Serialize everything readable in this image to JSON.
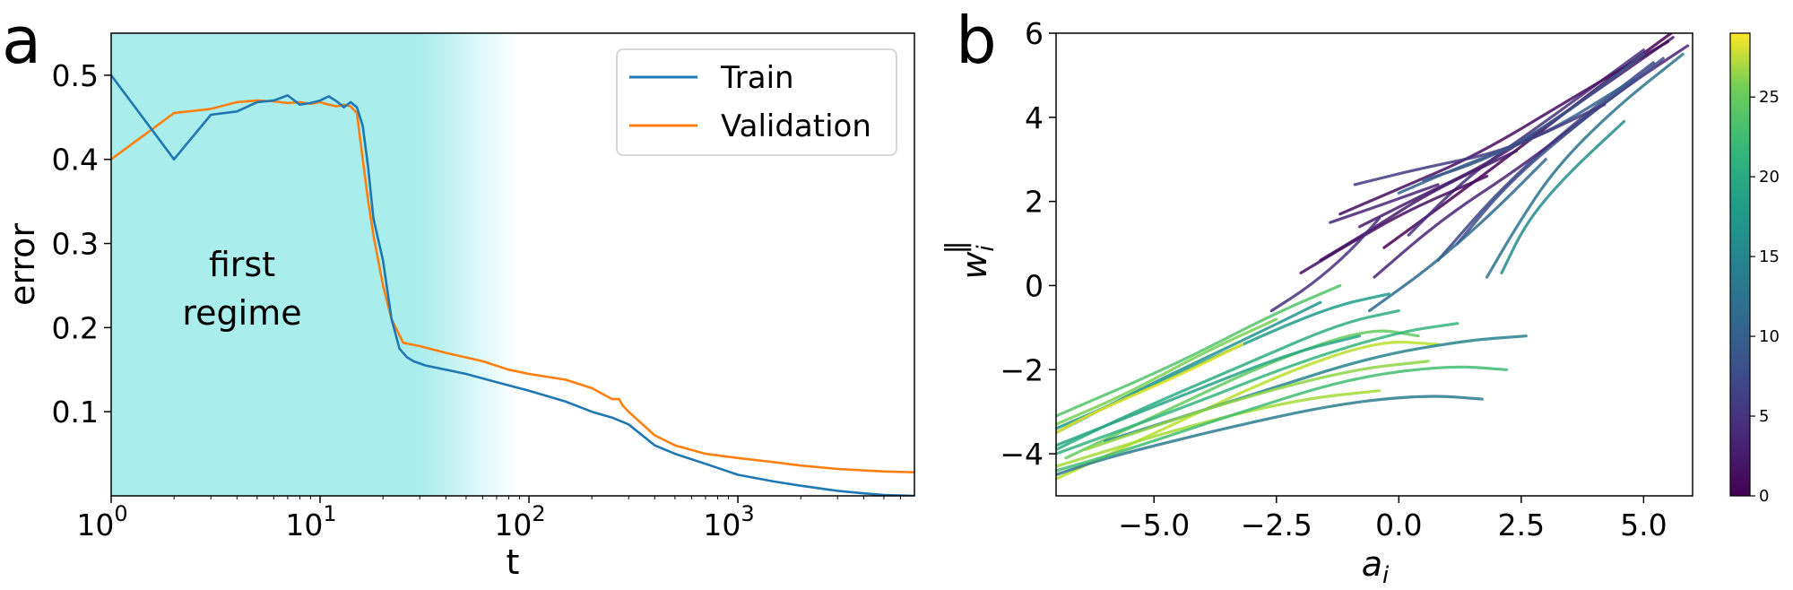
{
  "chart_data": [
    {
      "panel": "a",
      "type": "line",
      "xscale": "log",
      "xlim": [
        1,
        7000
      ],
      "ylim": [
        0.0,
        0.55
      ],
      "xlabel": "t",
      "ylabel": "error",
      "xticks": [
        {
          "value": 1,
          "base": "10",
          "exp": "0"
        },
        {
          "value": 10,
          "base": "10",
          "exp": "1"
        },
        {
          "value": 100,
          "base": "10",
          "exp": "2"
        },
        {
          "value": 1000,
          "base": "10",
          "exp": "3"
        }
      ],
      "yticks": [
        {
          "value": 0.1,
          "label": "0.1"
        },
        {
          "value": 0.2,
          "label": "0.2"
        },
        {
          "value": 0.3,
          "label": "0.3"
        },
        {
          "value": 0.4,
          "label": "0.4"
        },
        {
          "value": 0.5,
          "label": "0.5"
        }
      ],
      "annotation": {
        "line1": "first",
        "line2": "regime"
      },
      "shaded_region": {
        "from": 1,
        "fade_start": 30,
        "fade_end": 90,
        "color": "#a9eded"
      },
      "legend_position": "top-right",
      "series": [
        {
          "name": "Train",
          "color": "#1f77b4",
          "points": [
            [
              1,
              0.5
            ],
            [
              2,
              0.4
            ],
            [
              3,
              0.453
            ],
            [
              4,
              0.457
            ],
            [
              5,
              0.468
            ],
            [
              6,
              0.47
            ],
            [
              7,
              0.476
            ],
            [
              8,
              0.465
            ],
            [
              9,
              0.467
            ],
            [
              10,
              0.47
            ],
            [
              11,
              0.475
            ],
            [
              12,
              0.469
            ],
            [
              13,
              0.462
            ],
            [
              14,
              0.468
            ],
            [
              15,
              0.462
            ],
            [
              16,
              0.44
            ],
            [
              17,
              0.39
            ],
            [
              18,
              0.33
            ],
            [
              20,
              0.28
            ],
            [
              22,
              0.21
            ],
            [
              24,
              0.175
            ],
            [
              26,
              0.165
            ],
            [
              28,
              0.16
            ],
            [
              32,
              0.155
            ],
            [
              40,
              0.15
            ],
            [
              50,
              0.145
            ],
            [
              70,
              0.135
            ],
            [
              100,
              0.125
            ],
            [
              150,
              0.112
            ],
            [
              200,
              0.1
            ],
            [
              250,
              0.093
            ],
            [
              300,
              0.085
            ],
            [
              400,
              0.06
            ],
            [
              500,
              0.05
            ],
            [
              700,
              0.038
            ],
            [
              1000,
              0.025
            ],
            [
              1500,
              0.017
            ],
            [
              2000,
              0.012
            ],
            [
              3000,
              0.006
            ],
            [
              4000,
              0.003
            ],
            [
              5000,
              0.001
            ],
            [
              7000,
              0.0
            ]
          ]
        },
        {
          "name": "Validation",
          "color": "#ff7f0e",
          "points": [
            [
              1,
              0.4
            ],
            [
              2,
              0.455
            ],
            [
              3,
              0.46
            ],
            [
              4,
              0.468
            ],
            [
              5,
              0.47
            ],
            [
              6,
              0.469
            ],
            [
              7,
              0.467
            ],
            [
              8,
              0.468
            ],
            [
              9,
              0.466
            ],
            [
              10,
              0.468
            ],
            [
              11,
              0.465
            ],
            [
              12,
              0.463
            ],
            [
              13,
              0.465
            ],
            [
              14,
              0.463
            ],
            [
              15,
              0.455
            ],
            [
              16,
              0.4
            ],
            [
              17,
              0.35
            ],
            [
              18,
              0.31
            ],
            [
              20,
              0.25
            ],
            [
              22,
              0.21
            ],
            [
              25,
              0.182
            ],
            [
              30,
              0.178
            ],
            [
              40,
              0.17
            ],
            [
              60,
              0.16
            ],
            [
              80,
              0.15
            ],
            [
              100,
              0.145
            ],
            [
              150,
              0.138
            ],
            [
              200,
              0.128
            ],
            [
              250,
              0.115
            ],
            [
              270,
              0.115
            ],
            [
              280,
              0.108
            ],
            [
              300,
              0.1
            ],
            [
              400,
              0.072
            ],
            [
              500,
              0.06
            ],
            [
              700,
              0.05
            ],
            [
              1000,
              0.045
            ],
            [
              1500,
              0.04
            ],
            [
              2000,
              0.036
            ],
            [
              3000,
              0.032
            ],
            [
              5000,
              0.029
            ],
            [
              7000,
              0.028
            ]
          ]
        }
      ]
    },
    {
      "panel": "b",
      "type": "line",
      "xlim": [
        -7.0,
        6.0
      ],
      "ylim": [
        -5.0,
        6.0
      ],
      "xlabel": "a",
      "xlabel_sub": "i",
      "ylabel": "w",
      "ylabel_sub": "i",
      "ylabel_sup": "‖",
      "xticks": [
        {
          "value": -5.0,
          "label": "−5.0"
        },
        {
          "value": -2.5,
          "label": "−2.5"
        },
        {
          "value": 0.0,
          "label": "0.0"
        },
        {
          "value": 2.5,
          "label": "2.5"
        },
        {
          "value": 5.0,
          "label": "5.0"
        }
      ],
      "yticks": [
        {
          "value": -4,
          "label": "−4"
        },
        {
          "value": -2,
          "label": "−2"
        },
        {
          "value": 0,
          "label": "0"
        },
        {
          "value": 2,
          "label": "2"
        },
        {
          "value": 4,
          "label": "4"
        },
        {
          "value": 6,
          "label": "6"
        }
      ],
      "colormap": "viridis",
      "colorbar": {
        "range": [
          0,
          29
        ],
        "ticks": [
          {
            "value": 0,
            "label": "0"
          },
          {
            "value": 5,
            "label": "5"
          },
          {
            "value": 10,
            "label": "10"
          },
          {
            "value": 15,
            "label": "15"
          },
          {
            "value": 20,
            "label": "20"
          },
          {
            "value": 25,
            "label": "25"
          }
        ]
      },
      "trajectories": [
        [
          [
            -0.3,
            0.9
          ],
          [
            1.0,
            2.0
          ],
          [
            2.5,
            3.3
          ],
          [
            4.5,
            5.1
          ],
          [
            5.8,
            6.2
          ]
        ],
        [
          [
            -0.8,
            1.4
          ],
          [
            0.4,
            2.1
          ],
          [
            2.0,
            3.0
          ],
          [
            4.0,
            4.6
          ],
          [
            5.6,
            5.9
          ]
        ],
        [
          [
            0.2,
            1.2
          ],
          [
            1.4,
            2.6
          ],
          [
            3.0,
            3.9
          ],
          [
            5.0,
            5.6
          ]
        ],
        [
          [
            -1.2,
            1.7
          ],
          [
            0.0,
            2.3
          ],
          [
            1.6,
            3.1
          ],
          [
            3.6,
            4.5
          ],
          [
            5.5,
            5.8
          ]
        ],
        [
          [
            0.8,
            0.6
          ],
          [
            2.0,
            2.2
          ],
          [
            3.4,
            3.7
          ],
          [
            5.2,
            5.3
          ]
        ],
        [
          [
            -0.5,
            0.2
          ],
          [
            0.9,
            1.6
          ],
          [
            2.6,
            2.9
          ],
          [
            4.6,
            4.7
          ],
          [
            5.9,
            5.7
          ]
        ],
        [
          [
            0.0,
            2.2
          ],
          [
            1.4,
            2.9
          ],
          [
            3.0,
            3.6
          ],
          [
            4.8,
            4.9
          ]
        ],
        [
          [
            1.2,
            1.0
          ],
          [
            2.2,
            2.4
          ],
          [
            3.6,
            3.8
          ],
          [
            5.4,
            5.4
          ]
        ],
        [
          [
            1.8,
            0.2
          ],
          [
            2.4,
            1.4
          ],
          [
            3.2,
            2.8
          ],
          [
            4.4,
            4.2
          ],
          [
            5.8,
            5.5
          ]
        ],
        [
          [
            2.1,
            0.3
          ],
          [
            2.6,
            1.5
          ],
          [
            3.4,
            2.6
          ],
          [
            4.6,
            3.9
          ]
        ],
        [
          [
            -0.9,
            2.4
          ],
          [
            0.5,
            2.8
          ],
          [
            2.2,
            3.2
          ],
          [
            4.2,
            4.3
          ]
        ],
        [
          [
            0.5,
            2.5
          ],
          [
            1.8,
            3.0
          ],
          [
            3.2,
            3.9
          ],
          [
            5.0,
            5.5
          ]
        ],
        [
          [
            -1.6,
            0.6
          ],
          [
            -0.6,
            1.3
          ],
          [
            0.6,
            2.2
          ],
          [
            2.4,
            3.2
          ]
        ],
        [
          [
            -2.0,
            0.3
          ],
          [
            -1.0,
            1.0
          ],
          [
            0.2,
            1.8
          ],
          [
            1.8,
            2.6
          ]
        ],
        [
          [
            -1.4,
            1.5
          ],
          [
            -0.4,
            1.9
          ],
          [
            0.8,
            2.4
          ]
        ],
        [
          [
            -0.6,
            -0.6
          ],
          [
            0.6,
            0.4
          ],
          [
            1.8,
            1.6
          ],
          [
            3.0,
            3.0
          ]
        ],
        [
          [
            -2.6,
            -0.6
          ],
          [
            -1.8,
            0.0
          ],
          [
            -1.0,
            0.8
          ],
          [
            -0.4,
            1.6
          ]
        ],
        [
          [
            0.4,
            -1.2
          ],
          [
            -0.6,
            -1.0
          ],
          [
            -2.6,
            -1.8
          ],
          [
            -4.8,
            -3.0
          ],
          [
            -6.8,
            -4.1
          ]
        ],
        [
          [
            0.8,
            -1.4
          ],
          [
            -0.4,
            -1.3
          ],
          [
            -2.4,
            -2.1
          ],
          [
            -4.6,
            -3.3
          ],
          [
            -7.0,
            -4.6
          ]
        ],
        [
          [
            0.0,
            -0.6
          ],
          [
            -1.2,
            -0.9
          ],
          [
            -3.2,
            -1.9
          ],
          [
            -5.4,
            -3.0
          ],
          [
            -7.0,
            -3.9
          ]
        ],
        [
          [
            1.7,
            -2.7
          ],
          [
            0.6,
            -2.6
          ],
          [
            -1.2,
            -2.8
          ],
          [
            -3.6,
            -3.4
          ],
          [
            -6.0,
            -4.1
          ],
          [
            -7.0,
            -4.5
          ]
        ],
        [
          [
            -0.4,
            -2.5
          ],
          [
            -2.0,
            -2.7
          ],
          [
            -4.2,
            -3.3
          ],
          [
            -7.0,
            -4.3
          ]
        ],
        [
          [
            2.2,
            -2.0
          ],
          [
            1.0,
            -1.9
          ],
          [
            -1.0,
            -2.2
          ],
          [
            -3.2,
            -3.0
          ],
          [
            -5.8,
            -4.0
          ],
          [
            -7.0,
            -4.4
          ]
        ],
        [
          [
            -0.8,
            -1.2
          ],
          [
            -2.2,
            -1.6
          ],
          [
            -4.4,
            -2.6
          ],
          [
            -7.0,
            -3.8
          ]
        ],
        [
          [
            -1.6,
            -0.4
          ],
          [
            -3.0,
            -1.2
          ],
          [
            -5.0,
            -2.3
          ],
          [
            -7.0,
            -3.5
          ]
        ],
        [
          [
            -2.5,
            -0.8
          ],
          [
            -4.0,
            -1.6
          ],
          [
            -5.6,
            -2.6
          ],
          [
            -7.0,
            -3.3
          ]
        ],
        [
          [
            1.2,
            -0.9
          ],
          [
            0.0,
            -1.1
          ],
          [
            -2.0,
            -1.8
          ],
          [
            -4.4,
            -2.9
          ],
          [
            -7.0,
            -4.0
          ]
        ],
        [
          [
            -0.2,
            -0.2
          ],
          [
            -1.4,
            -0.5
          ],
          [
            -3.4,
            -1.5
          ],
          [
            -5.8,
            -2.8
          ],
          [
            -7.0,
            -3.4
          ]
        ],
        [
          [
            -1.2,
            0.0
          ],
          [
            -2.6,
            -0.7
          ],
          [
            -4.6,
            -1.9
          ],
          [
            -7.0,
            -3.1
          ]
        ],
        [
          [
            2.6,
            -1.2
          ],
          [
            1.4,
            -1.3
          ],
          [
            -0.6,
            -1.7
          ],
          [
            -3.0,
            -2.6
          ],
          [
            -6.0,
            -3.7
          ]
        ],
        [
          [
            -3.2,
            -1.4
          ],
          [
            -4.6,
            -2.2
          ],
          [
            -6.2,
            -3.0
          ],
          [
            -7.0,
            -3.5
          ]
        ],
        [
          [
            0.6,
            -1.8
          ],
          [
            -1.0,
            -2.0
          ],
          [
            -3.6,
            -2.8
          ],
          [
            -6.4,
            -3.9
          ]
        ]
      ],
      "trajectory_colors": [
        0,
        2,
        4,
        1,
        6,
        3,
        9,
        7,
        11,
        14,
        5,
        8,
        2,
        1,
        3,
        10,
        4,
        22,
        26,
        18,
        12,
        25,
        20,
        17,
        15,
        23,
        19,
        16,
        21,
        13,
        28,
        24
      ]
    }
  ],
  "panels": {
    "a": "a",
    "b": "b"
  }
}
